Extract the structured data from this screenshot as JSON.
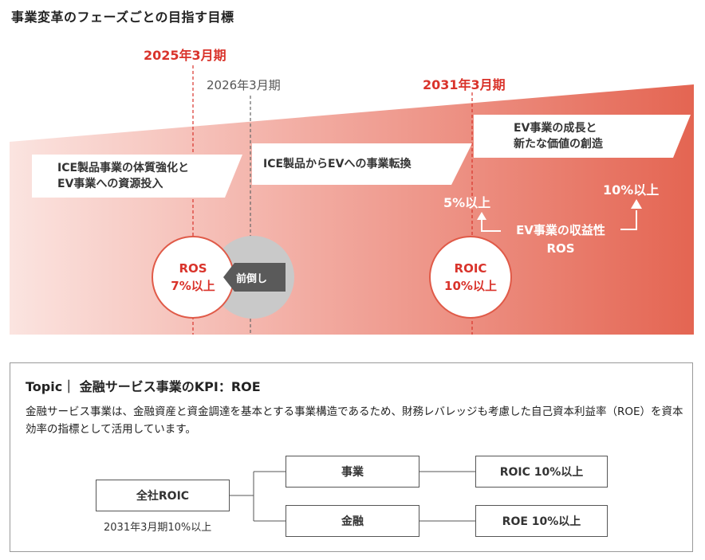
{
  "title": "事業変革のフェーズごとの目指す目標",
  "timeline": {
    "milestones": [
      {
        "label": "2025年3月期",
        "color": "#d9332b"
      },
      {
        "label": "2026年3月期",
        "color": "#555555"
      },
      {
        "label": "2031年3月期",
        "color": "#d9332b"
      }
    ],
    "phases": [
      {
        "lines": [
          "ICE製品事業の体質強化と",
          "EV事業への資源投入"
        ]
      },
      {
        "lines": [
          "ICE製品からEVへの事業転換"
        ]
      },
      {
        "lines": [
          "EV事業の成長と",
          "新たな価値の創造"
        ]
      }
    ],
    "ros_target": {
      "lines": [
        "ROS",
        "7%以上"
      ]
    },
    "ros_faded": {
      "lines": [
        "ROS",
        "7%以上"
      ]
    },
    "pull_forward_label": "前倒し",
    "roic_target": {
      "lines": [
        "ROIC",
        "10%以上"
      ]
    },
    "ev_ros": {
      "low": "5%以上",
      "high": "10%以上",
      "label_lines": [
        "EV事業の収益性",
        "ROS"
      ]
    },
    "colors": {
      "accent": "#d9332b",
      "gradient_start": "#fbe4e0",
      "gradient_end": "#e46552"
    }
  },
  "topic": {
    "heading": "Topic｜ 金融サービス事業のKPI：ROE",
    "body": "金融サービス事業は、金融資産と資金調達を基本とする事業構造であるため、財務レバレッジも考慮した自己資本利益率（ROE）を資本効率の指標として活用しています。",
    "flow": {
      "root": {
        "label": "全社ROIC",
        "caption": "2031年3月期10%以上"
      },
      "branches": [
        {
          "label": "事業",
          "target": "ROIC 10%以上"
        },
        {
          "label": "金融",
          "target": "ROE 10%以上"
        }
      ]
    }
  }
}
